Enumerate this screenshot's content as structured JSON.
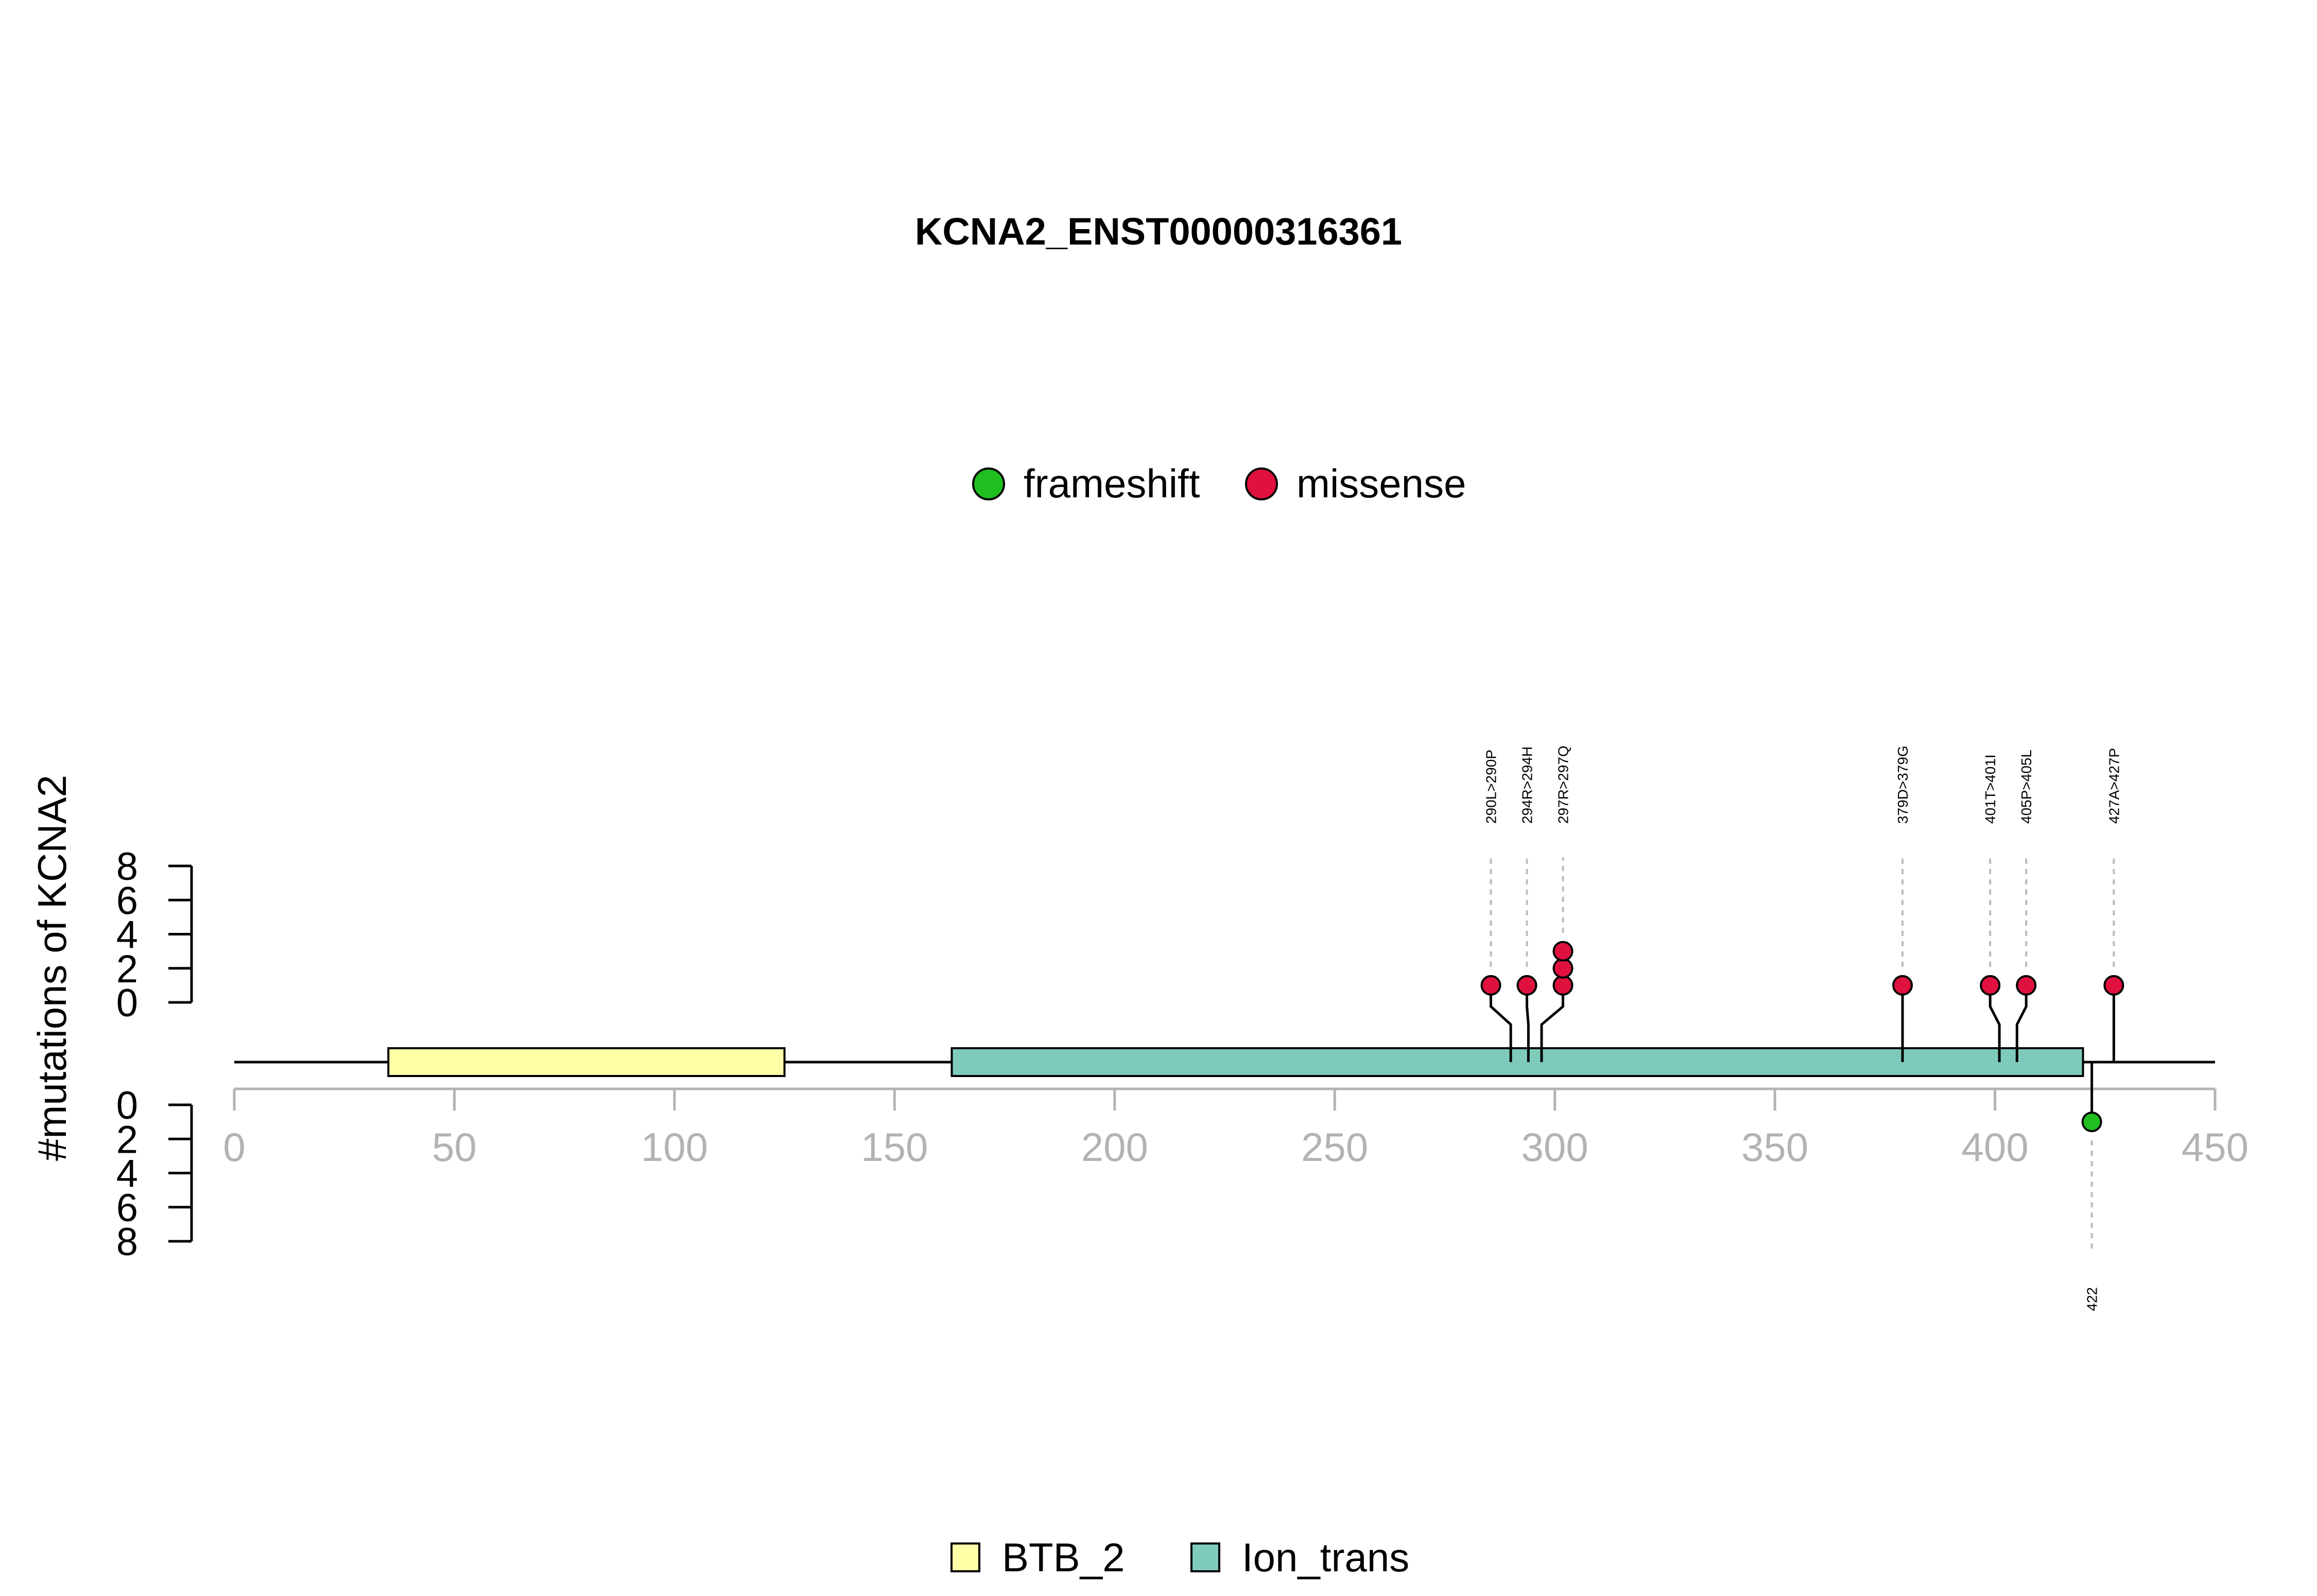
{
  "chart_data": {
    "type": "lollipop",
    "title": "KCNA2_ENST00000316361",
    "ylabel": "#mutations of KCNA2",
    "xlim": [
      0,
      450
    ],
    "x_ticks": [
      0,
      50,
      100,
      150,
      200,
      250,
      300,
      350,
      400,
      450
    ],
    "y_ticks_top": [
      0,
      2,
      4,
      6,
      8
    ],
    "y_ticks_bottom": [
      0,
      2,
      4,
      6,
      8
    ],
    "y_max": 8,
    "mutation_legend": [
      {
        "label": "frameshift",
        "color": "#1fbf1f"
      },
      {
        "label": "missense",
        "color": "#e0103f"
      }
    ],
    "domain_legend": [
      {
        "label": "BTB_2",
        "color": "#ffffa8"
      },
      {
        "label": "Ion_trans",
        "color": "#7fcbbb"
      }
    ],
    "domains": [
      {
        "name": "BTB_2",
        "start": 35,
        "end": 125,
        "color": "#ffffa8"
      },
      {
        "name": "Ion_trans",
        "start": 163,
        "end": 420,
        "color": "#7fcbbb"
      }
    ],
    "mutations_top": [
      {
        "position": 290,
        "label": "290L>290P",
        "count": 1,
        "type": "missense"
      },
      {
        "position": 294,
        "label": "294R>294H",
        "count": 1,
        "type": "missense"
      },
      {
        "position": 297,
        "label": "297R>297Q",
        "count": 3,
        "type": "missense"
      },
      {
        "position": 379,
        "label": "379D>379G",
        "count": 1,
        "type": "missense"
      },
      {
        "position": 401,
        "label": "401T>401I",
        "count": 1,
        "type": "missense"
      },
      {
        "position": 405,
        "label": "405P>405L",
        "count": 1,
        "type": "missense"
      },
      {
        "position": 427,
        "label": "427A>427P",
        "count": 1,
        "type": "missense"
      }
    ],
    "mutations_bottom": [
      {
        "position": 422,
        "label": "422",
        "count": 1,
        "type": "frameshift"
      }
    ]
  }
}
